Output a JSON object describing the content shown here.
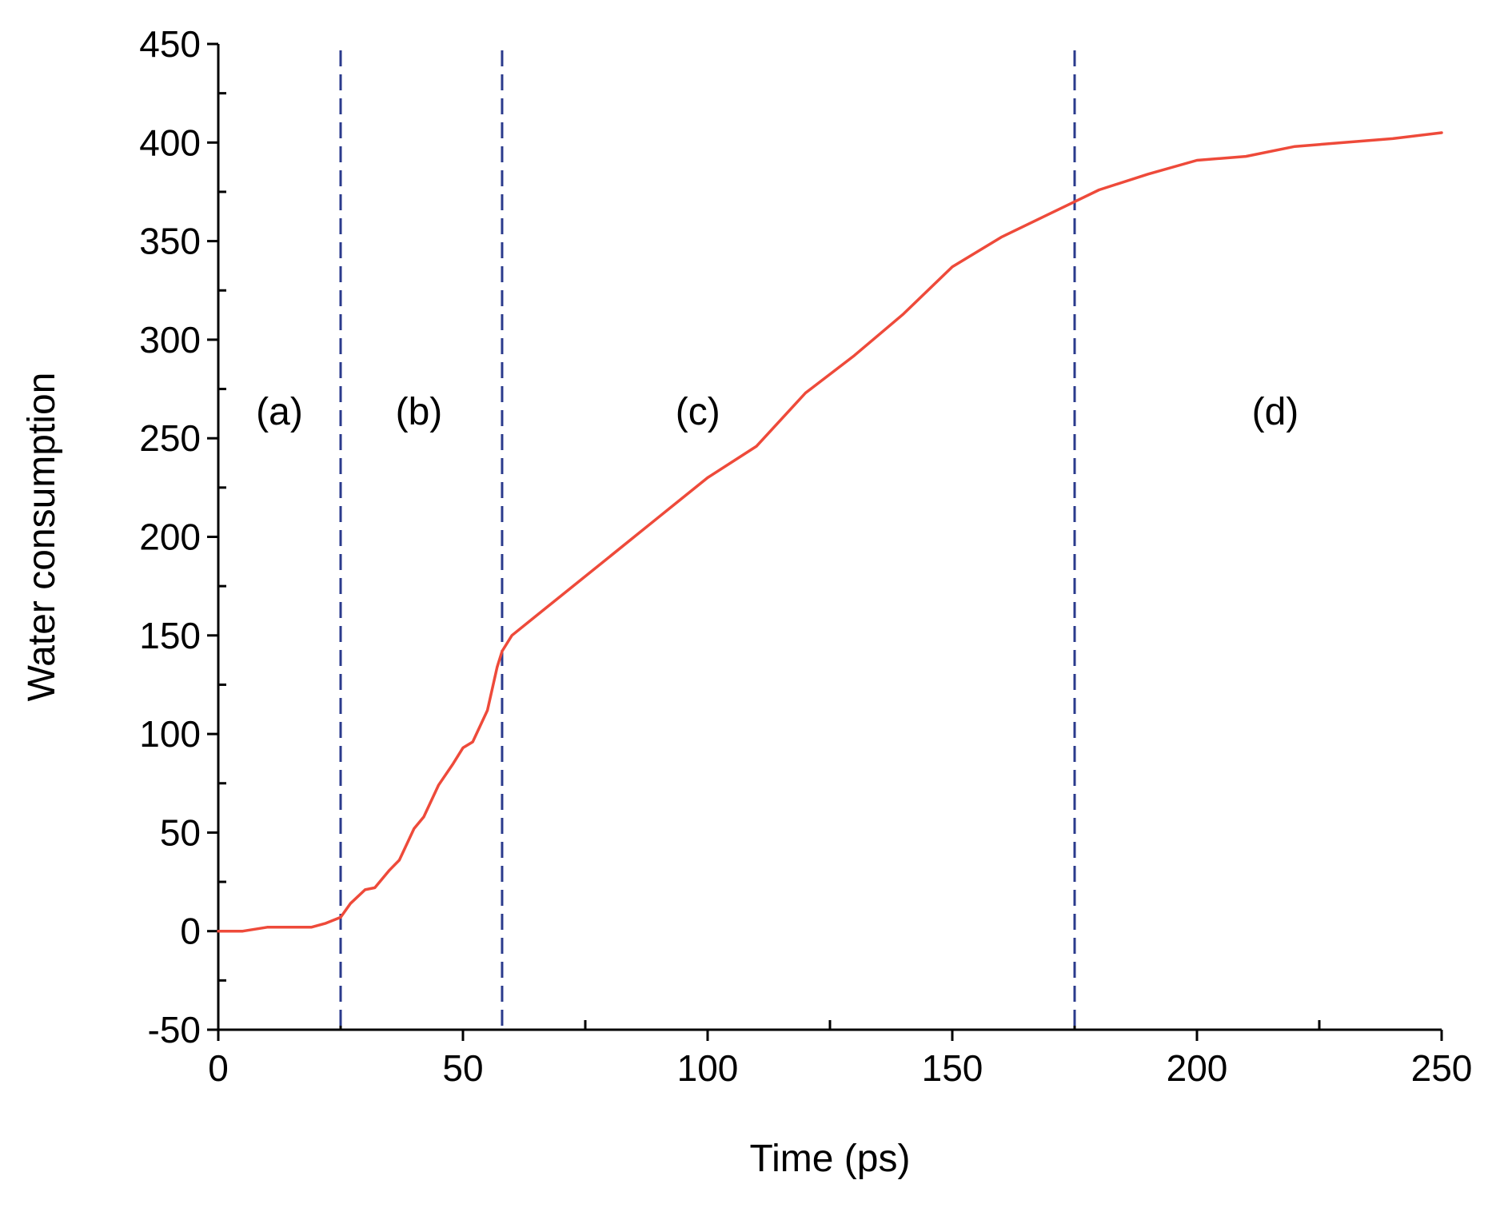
{
  "chart_data": {
    "type": "line",
    "xlabel": "Time (ps)",
    "ylabel": "Water consumption",
    "xlim": [
      0,
      250
    ],
    "ylim": [
      -50,
      450
    ],
    "x_ticks": [
      0,
      50,
      100,
      150,
      200,
      250
    ],
    "y_ticks": [
      -50,
      0,
      50,
      100,
      150,
      200,
      250,
      300,
      350,
      400,
      450
    ],
    "x_tick_labels": [
      "0",
      "50",
      "100",
      "150",
      "200",
      "250"
    ],
    "y_tick_labels": [
      "-50",
      "0",
      "50",
      "100",
      "150",
      "200",
      "250",
      "300",
      "350",
      "400",
      "450"
    ],
    "grid": false,
    "series": [
      {
        "color": "#ee4a3a",
        "x": [
          0,
          5,
          10,
          15,
          19,
          22,
          25,
          27,
          30,
          32,
          35,
          37,
          40,
          42,
          45,
          48,
          50,
          52,
          55,
          57,
          58,
          60,
          65,
          70,
          80,
          90,
          100,
          110,
          120,
          130,
          140,
          150,
          160,
          170,
          175,
          180,
          190,
          200,
          210,
          220,
          230,
          240,
          250
        ],
        "y": [
          0,
          0,
          2,
          2,
          2,
          4,
          7,
          14,
          21,
          22,
          31,
          36,
          52,
          58,
          74,
          85,
          93,
          96,
          112,
          134,
          142,
          150,
          160,
          170,
          190,
          210,
          230,
          246,
          273,
          292,
          313,
          337,
          352,
          364,
          370,
          376,
          384,
          391,
          393,
          398,
          400,
          402,
          405
        ]
      }
    ],
    "vertical_lines": [
      {
        "x": 25,
        "style": "dashed",
        "color": "#2a3a8c"
      },
      {
        "x": 58,
        "style": "dashed",
        "color": "#2a3a8c"
      },
      {
        "x": 175,
        "style": "dashed",
        "color": "#2a3a8c"
      }
    ],
    "annotations": [
      {
        "text": "(a)",
        "x": 12.5,
        "y": 257
      },
      {
        "text": "(b)",
        "x": 41,
        "y": 257
      },
      {
        "text": "(c)",
        "x": 98,
        "y": 257
      },
      {
        "text": "(d)",
        "x": 216,
        "y": 257
      }
    ]
  }
}
